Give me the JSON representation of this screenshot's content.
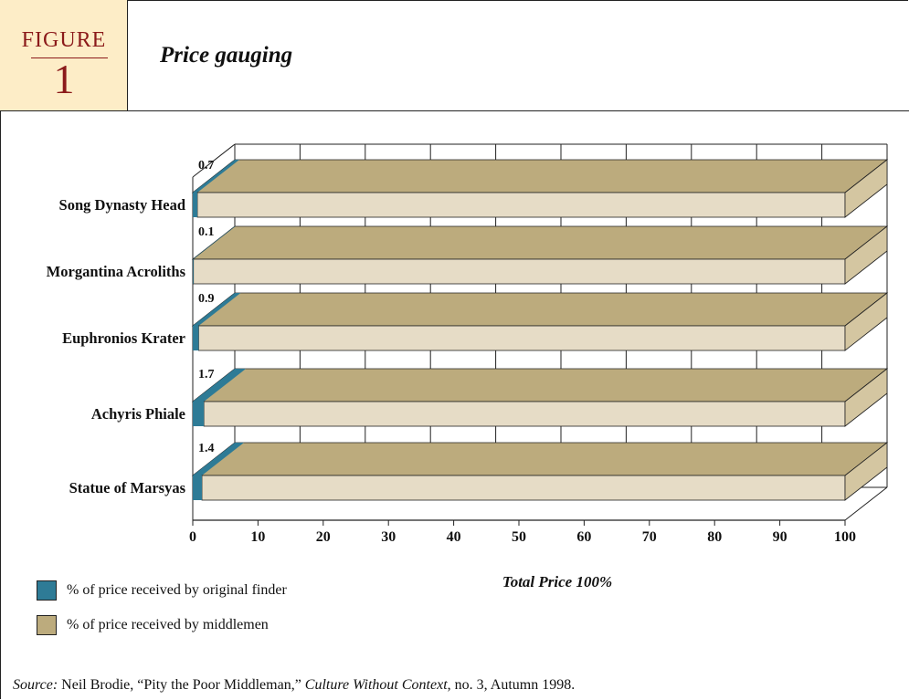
{
  "figure": {
    "label": "FIGURE",
    "number": "1",
    "title": "Price gauging"
  },
  "colors": {
    "finder": "#2e7b96",
    "middlemen": "#bcab7d",
    "bar_front": "#e6dcc6",
    "bar_top": "#bcab7d",
    "bar_side": "#d4c6a1",
    "header_bg": "#fdedc7",
    "header_text": "#8b1a1a"
  },
  "chart_data": {
    "type": "bar",
    "orientation": "horizontal",
    "stacked": true,
    "style": "3d",
    "categories": [
      "Song Dynasty Head",
      "Morgantina Acroliths",
      "Euphronios Krater",
      "Achyris Phiale",
      "Statue of Marsyas"
    ],
    "series": [
      {
        "name": "% of price received by original finder",
        "values": [
          0.7,
          0.1,
          0.9,
          1.7,
          1.4
        ]
      },
      {
        "name": "% of price received by middlemen",
        "values": [
          99.3,
          99.9,
          99.1,
          98.3,
          98.6
        ]
      }
    ],
    "data_labels": [
      "0.7",
      "0.1",
      "0.9",
      "1.7",
      "1.4"
    ],
    "xticks": [
      "0",
      "10",
      "20",
      "30",
      "40",
      "50",
      "60",
      "70",
      "80",
      "90",
      "100"
    ],
    "xlim": [
      0,
      100
    ],
    "xlabel": "Total Price 100%",
    "grid": "vertical",
    "legend_position": "bottom-left"
  },
  "source": {
    "label": "Source:",
    "author": "Neil Brodie, “Pity the Poor Middleman,”",
    "publication": "Culture Without Context",
    "details": ", no.  3, Autumn 1998."
  }
}
